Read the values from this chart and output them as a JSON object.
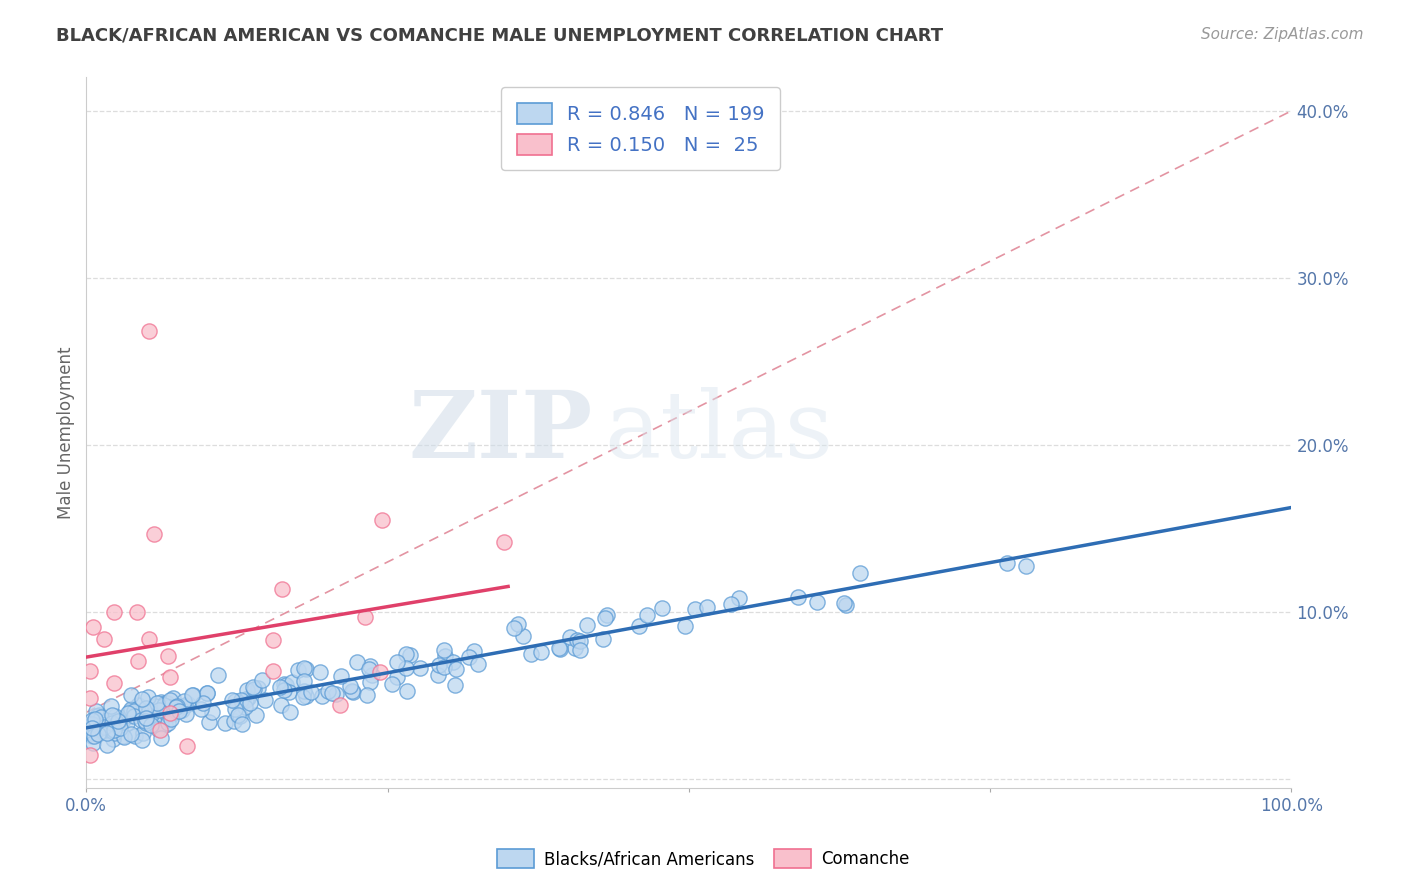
{
  "title": "BLACK/AFRICAN AMERICAN VS COMANCHE MALE UNEMPLOYMENT CORRELATION CHART",
  "source": "Source: ZipAtlas.com",
  "ylabel": "Male Unemployment",
  "xlabel": "",
  "xlim": [
    0,
    1.0
  ],
  "ylim": [
    -0.005,
    0.42
  ],
  "xticks": [
    0.0,
    0.25,
    0.5,
    0.75,
    1.0
  ],
  "xtick_labels": [
    "0.0%",
    "",
    "",
    "",
    "100.0%"
  ],
  "yticks": [
    0.0,
    0.1,
    0.2,
    0.3,
    0.4
  ],
  "ytick_labels_right": [
    "",
    "10.0%",
    "20.0%",
    "30.0%",
    "40.0%"
  ],
  "blue_R": 0.846,
  "blue_N": 199,
  "pink_R": 0.15,
  "pink_N": 25,
  "blue_edge": "#5b9bd5",
  "blue_face": "#bdd7f0",
  "pink_edge": "#f07090",
  "pink_face": "#f9c0cc",
  "trend_blue": "#2e6db4",
  "trend_pink": "#e0406a",
  "ref_line_color": "#e08898",
  "watermark_zip": "ZIP",
  "watermark_atlas": "atlas",
  "background_color": "#ffffff",
  "legend_text_color": "#4472c4",
  "title_color": "#404040",
  "grid_color": "#dddddd",
  "seed": 42
}
